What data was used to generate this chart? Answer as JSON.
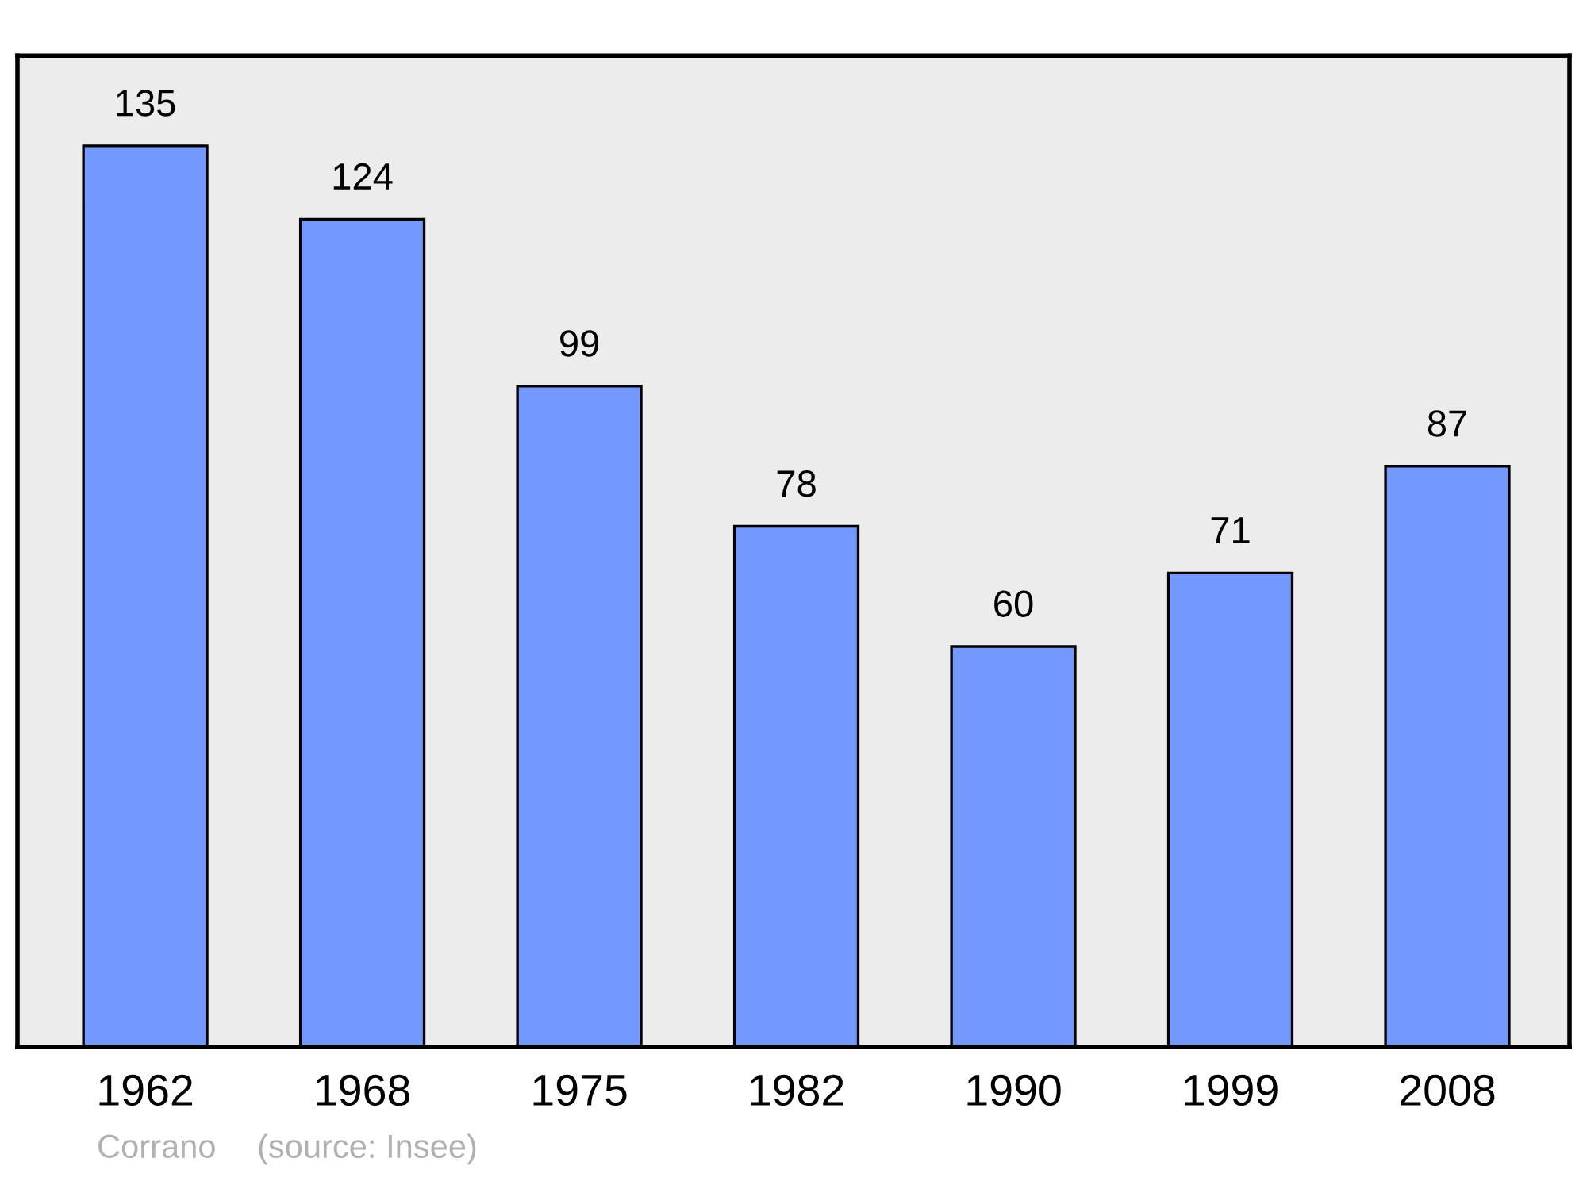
{
  "chart_data": {
    "type": "bar",
    "categories": [
      "1962",
      "1968",
      "1975",
      "1982",
      "1990",
      "1999",
      "2008"
    ],
    "values": [
      135,
      124,
      99,
      78,
      60,
      71,
      87
    ],
    "color": "#7399ff",
    "data_labels": true,
    "grid": false,
    "legend": false,
    "annotations": [
      "Corrano",
      "(source: Insee)"
    ]
  }
}
